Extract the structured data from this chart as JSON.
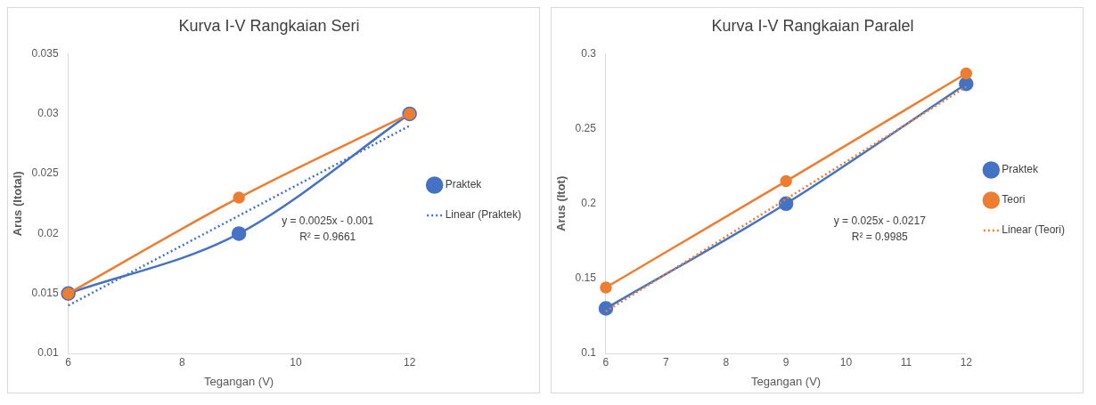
{
  "chart_data": [
    {
      "type": "line",
      "title": "Kurva I-V Rangkaian Seri",
      "xlabel": "Tegangan (V)",
      "ylabel": "Arus (Itotal)",
      "x": [
        6,
        9,
        12
      ],
      "xlim": [
        6,
        12
      ],
      "xticks": [
        6,
        8,
        10,
        12
      ],
      "ylim": [
        0.01,
        0.035
      ],
      "yticks": [
        0.01,
        0.015,
        0.02,
        0.025,
        0.03,
        0.035
      ],
      "grid": false,
      "legend": "right",
      "marker": "circle",
      "series": [
        {
          "name": "Praktek",
          "color": "#4472c4",
          "values": [
            0.015,
            0.02,
            0.03
          ]
        },
        {
          "color": "#ed7d31",
          "values": [
            0.015,
            0.023,
            0.03
          ]
        },
        {
          "name": "Linear (Praktek)",
          "color": "#4472c4",
          "marker": "none",
          "line_style": "dotted",
          "values": [
            0.014,
            0.0215,
            0.029
          ]
        }
      ],
      "annotations": [
        "y = 0.0025x - 0.001",
        "R² = 0.9661"
      ]
    },
    {
      "type": "line",
      "title": "Kurva I-V Rangkaian Paralel",
      "xlabel": "Tegangan (V)",
      "ylabel": "Arus (Itot)",
      "x": [
        6,
        9,
        12
      ],
      "xlim": [
        6,
        12
      ],
      "xticks": [
        6,
        7,
        8,
        9,
        10,
        11,
        12
      ],
      "ylim": [
        0.1,
        0.3
      ],
      "yticks": [
        0.1,
        0.15,
        0.2,
        0.25,
        0.3
      ],
      "grid": false,
      "legend": "right",
      "marker": "circle",
      "series": [
        {
          "name": "Praktek",
          "color": "#4472c4",
          "values": [
            0.13,
            0.2,
            0.28
          ]
        },
        {
          "name": "Teori",
          "color": "#ed7d31",
          "values": [
            0.144,
            0.215,
            0.287
          ]
        },
        {
          "name": "Linear (Teori)",
          "color": "#ed7d31",
          "marker": "none",
          "line_style": "dotted",
          "values": [
            0.128,
            0.203,
            0.278
          ]
        }
      ],
      "annotations": [
        "y = 0.025x - 0.0217",
        "R² = 0.9985"
      ]
    }
  ]
}
